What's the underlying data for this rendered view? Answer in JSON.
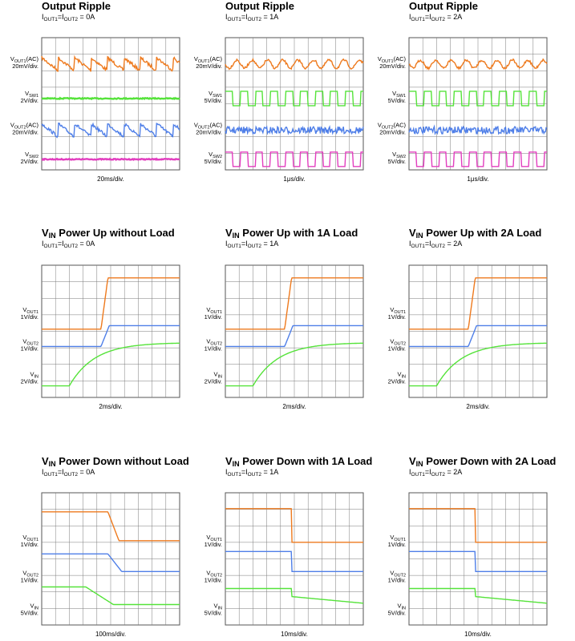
{
  "colors": {
    "vout1": "#ee7a1e",
    "vout2": "#4f7fe8",
    "vin": "#55e33a",
    "vsw": "#e23fbf",
    "grid": "#7a7a7a",
    "frame": "#555555"
  },
  "chart_data": [
    {
      "type": "line",
      "title": "Output Ripple",
      "title_sub": "",
      "subtitle": "=I",
      "subtitle_a": "I",
      "subtitle_a_sub": "OUT1",
      "subtitle_b_sub": "OUT2",
      "subtitle_tail": "= 0A",
      "xscale": "20ms/div.",
      "channels": [
        {
          "name": "V",
          "sub": "OUT1",
          "suffix": "(AC)",
          "scale": "20mV/div.",
          "kind": "saw",
          "color": "vout1"
        },
        {
          "name": "V",
          "sub": "SW1",
          "suffix": "",
          "scale": "2V/div.",
          "kind": "flat",
          "color": "vin"
        },
        {
          "name": "V",
          "sub": "OUT2",
          "suffix": "(AC)",
          "scale": "20mV/div.",
          "kind": "saw",
          "color": "vout2"
        },
        {
          "name": "V",
          "sub": "SW2",
          "suffix": "",
          "scale": "2V/div.",
          "kind": "flat",
          "color": "vsw"
        }
      ]
    },
    {
      "type": "line",
      "title": "Output Ripple",
      "title_sub": "",
      "subtitle": "=I",
      "subtitle_a": "I",
      "subtitle_a_sub": "OUT1",
      "subtitle_b_sub": "OUT2",
      "subtitle_tail": "= 1A",
      "xscale": "1μs/div.",
      "channels": [
        {
          "name": "V",
          "sub": "OUT1",
          "suffix": "(AC)",
          "scale": "20mV/div.",
          "kind": "sine",
          "color": "vout1"
        },
        {
          "name": "V",
          "sub": "SW1",
          "suffix": "",
          "scale": "5V/div.",
          "kind": "square",
          "color": "vin"
        },
        {
          "name": "V",
          "sub": "OUT2",
          "suffix": "(AC)",
          "scale": "20mV/div.",
          "kind": "noise",
          "color": "vout2"
        },
        {
          "name": "V",
          "sub": "SW2",
          "suffix": "",
          "scale": "5V/div.",
          "kind": "square",
          "color": "vsw"
        }
      ]
    },
    {
      "type": "line",
      "title": "Output Ripple",
      "title_sub": "",
      "subtitle": "=I",
      "subtitle_a": "I",
      "subtitle_a_sub": "OUT1",
      "subtitle_b_sub": "OUT2",
      "subtitle_tail": "= 2A",
      "xscale": "1μs/div.",
      "channels": [
        {
          "name": "V",
          "sub": "OUT1",
          "suffix": "(AC)",
          "scale": "20mV/div.",
          "kind": "sine",
          "color": "vout1"
        },
        {
          "name": "V",
          "sub": "SW1",
          "suffix": "",
          "scale": "5V/div.",
          "kind": "square",
          "color": "vin"
        },
        {
          "name": "V",
          "sub": "OUT2",
          "suffix": "(AC)",
          "scale": "20mV/div.",
          "kind": "noise",
          "color": "vout2"
        },
        {
          "name": "V",
          "sub": "SW2",
          "suffix": "",
          "scale": "5V/div.",
          "kind": "square",
          "color": "vsw"
        }
      ]
    },
    {
      "type": "line",
      "title": "V",
      "title_sub": "IN",
      "title_tail": " Power Up without Load",
      "subtitle_a": "I",
      "subtitle_a_sub": "OUT1",
      "subtitle_b_sub": "OUT2",
      "subtitle": "=I",
      "subtitle_tail": "= 0A",
      "xscale": "2ms/div.",
      "channels": [
        {
          "name": "V",
          "sub": "OUT1",
          "suffix": "",
          "scale": "1V/div.",
          "kind": "up-orange",
          "color": "vout1"
        },
        {
          "name": "V",
          "sub": "OUT2",
          "suffix": "",
          "scale": "1V/div.",
          "kind": "up-blue",
          "color": "vout2"
        },
        {
          "name": "V",
          "sub": "IN",
          "suffix": "",
          "scale": "2V/div.",
          "kind": "up-green",
          "color": "vin"
        }
      ]
    },
    {
      "type": "line",
      "title": "V",
      "title_sub": "IN",
      "title_tail": " Power Up with 1A Load",
      "subtitle_a": "I",
      "subtitle_a_sub": "OUT1",
      "subtitle_b_sub": "OUT2",
      "subtitle": "=I",
      "subtitle_tail": "= 1A",
      "xscale": "2ms/div.",
      "channels": [
        {
          "name": "V",
          "sub": "OUT1",
          "suffix": "",
          "scale": "1V/div.",
          "kind": "up-orange",
          "color": "vout1"
        },
        {
          "name": "V",
          "sub": "OUT2",
          "suffix": "",
          "scale": "1V/div.",
          "kind": "up-blue",
          "color": "vout2"
        },
        {
          "name": "V",
          "sub": "IN",
          "suffix": "",
          "scale": "2V/div.",
          "kind": "up-green",
          "color": "vin"
        }
      ]
    },
    {
      "type": "line",
      "title": "V",
      "title_sub": "IN",
      "title_tail": " Power Up with 2A Load",
      "subtitle_a": "I",
      "subtitle_a_sub": "OUT1",
      "subtitle_b_sub": "OUT2",
      "subtitle": "=I",
      "subtitle_tail": "= 2A",
      "xscale": "2ms/div.",
      "channels": [
        {
          "name": "V",
          "sub": "OUT1",
          "suffix": "",
          "scale": "1V/div.",
          "kind": "up-orange",
          "color": "vout1"
        },
        {
          "name": "V",
          "sub": "OUT2",
          "suffix": "",
          "scale": "1V/div.",
          "kind": "up-blue",
          "color": "vout2"
        },
        {
          "name": "V",
          "sub": "IN",
          "suffix": "",
          "scale": "2V/div.",
          "kind": "up-green",
          "color": "vin"
        }
      ]
    },
    {
      "type": "line",
      "title": "V",
      "title_sub": "IN",
      "title_tail": " Power Down without Load",
      "subtitle_a": "I",
      "subtitle_a_sub": "OUT1",
      "subtitle_b_sub": "OUT2",
      "subtitle": "=I",
      "subtitle_tail": "= 0A",
      "xscale": "100ms/div.",
      "channels": [
        {
          "name": "V",
          "sub": "OUT1",
          "suffix": "",
          "scale": "1V/div.",
          "kind": "down-slow-orange",
          "color": "vout1"
        },
        {
          "name": "V",
          "sub": "OUT2",
          "suffix": "",
          "scale": "1V/div.",
          "kind": "down-slow-blue",
          "color": "vout2"
        },
        {
          "name": "V",
          "sub": "IN",
          "suffix": "",
          "scale": "5V/div.",
          "kind": "down-slow-green",
          "color": "vin"
        }
      ]
    },
    {
      "type": "line",
      "title": "V",
      "title_sub": "IN",
      "title_tail": " Power Down with 1A Load",
      "subtitle_a": "I",
      "subtitle_a_sub": "OUT1",
      "subtitle_b_sub": "OUT2",
      "subtitle": "=I",
      "subtitle_tail": "= 1A",
      "xscale": "10ms/div.",
      "channels": [
        {
          "name": "V",
          "sub": "OUT1",
          "suffix": "",
          "scale": "1V/div.",
          "kind": "down-fast-orange",
          "color": "vout1"
        },
        {
          "name": "V",
          "sub": "OUT2",
          "suffix": "",
          "scale": "1V/div.",
          "kind": "down-fast-blue",
          "color": "vout2"
        },
        {
          "name": "V",
          "sub": "IN",
          "suffix": "",
          "scale": "5V/div.",
          "kind": "down-fast-green",
          "color": "vin"
        }
      ]
    },
    {
      "type": "line",
      "title": "V",
      "title_sub": "IN",
      "title_tail": " Power Down with 2A Load",
      "subtitle_a": "I",
      "subtitle_a_sub": "OUT1",
      "subtitle_b_sub": "OUT2",
      "subtitle": "=I",
      "subtitle_tail": "= 2A",
      "xscale": "10ms/div.",
      "channels": [
        {
          "name": "V",
          "sub": "OUT1",
          "suffix": "",
          "scale": "1V/div.",
          "kind": "down-fast-orange",
          "color": "vout1"
        },
        {
          "name": "V",
          "sub": "OUT2",
          "suffix": "",
          "scale": "1V/div.",
          "kind": "down-fast-blue",
          "color": "vout2"
        },
        {
          "name": "V",
          "sub": "IN",
          "suffix": "",
          "scale": "5V/div.",
          "kind": "down-fast-green",
          "color": "vin"
        }
      ]
    }
  ]
}
